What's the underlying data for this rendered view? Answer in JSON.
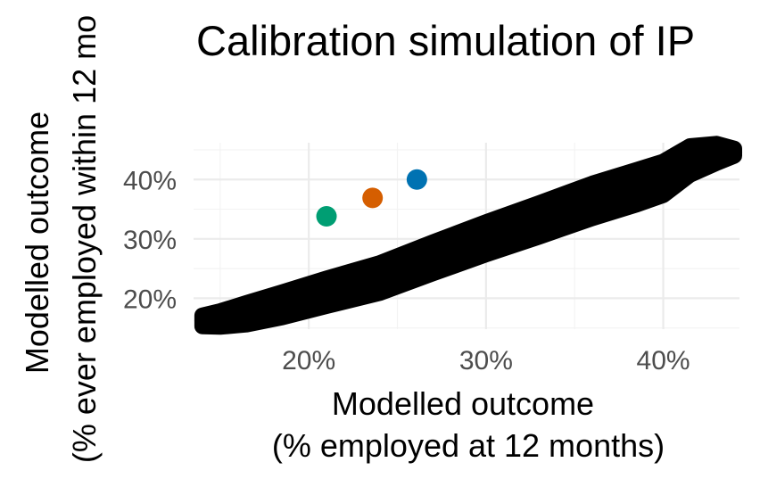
{
  "chart_data": {
    "type": "scatter",
    "title": "Calibration simulation of IP",
    "xlabel": [
      "Modelled outcome",
      "(% employed at 12 months)"
    ],
    "ylabel": [
      "Modelled outcome",
      "(% ever employed within 12 mo"
    ],
    "xlim": [
      13.5,
      44.3
    ],
    "ylim": [
      14.8,
      46.2
    ],
    "x_ticks": [
      20,
      30,
      40
    ],
    "x_tick_labels": [
      "20%",
      "30%",
      "40%"
    ],
    "y_ticks": [
      20,
      30,
      40
    ],
    "y_tick_labels": [
      "20%",
      "30%",
      "40%"
    ],
    "grid": true,
    "legend": "none",
    "colors": {
      "simulation": "#000000",
      "point_blue": "#0072B2",
      "point_orange": "#D55E00",
      "point_green": "#009E73"
    },
    "series": [
      {
        "kind": "band",
        "color": "#000000",
        "x": [
          14.0,
          15.0,
          16.5,
          18.5,
          21.0,
          24.0,
          27.0,
          30.0,
          33.0,
          36.0,
          38.5,
          40.0,
          41.5,
          43.0,
          44.0
        ],
        "y": [
          16.2,
          16.5,
          17.4,
          18.9,
          21.0,
          23.4,
          26.8,
          30.1,
          33.2,
          36.4,
          38.7,
          40.2,
          43.2,
          44.4,
          44.6
        ],
        "half_width": [
          0.9,
          1.3,
          1.8,
          2.1,
          2.3,
          2.5,
          2.6,
          2.7,
          2.8,
          2.9,
          2.9,
          2.8,
          2.4,
          1.6,
          0.6
        ]
      },
      {
        "kind": "points",
        "points": [
          {
            "x": 26.1,
            "y": 40.0,
            "color": "#0072B2"
          },
          {
            "x": 23.6,
            "y": 36.9,
            "color": "#D55E00"
          },
          {
            "x": 21.0,
            "y": 33.8,
            "color": "#009E73"
          }
        ]
      }
    ]
  }
}
